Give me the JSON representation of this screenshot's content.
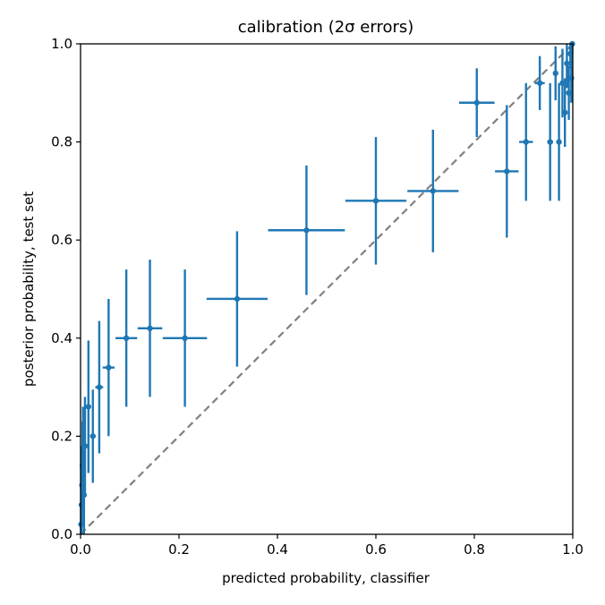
{
  "chart_data": {
    "type": "scatter",
    "title": "calibration (2σ errors)",
    "xlabel": "predicted probability, classifier",
    "ylabel": "posterior probability, test set",
    "xlim": [
      0.0,
      1.0
    ],
    "ylim": [
      0.0,
      1.0
    ],
    "xticks": [
      "0.0",
      "0.2",
      "0.4",
      "0.6",
      "0.8",
      "1.0"
    ],
    "yticks": [
      "0.0",
      "0.2",
      "0.4",
      "0.6",
      "0.8",
      "1.0"
    ],
    "grid": false,
    "reference_line": {
      "x": [
        0.0,
        1.0
      ],
      "y": [
        0.0,
        1.0
      ],
      "style": "dashed",
      "color": "#808080"
    },
    "series": [
      {
        "color": "#1f77b4",
        "points": [
          {
            "x": 0.001,
            "y": 0.02,
            "xerr": 0.001,
            "yerr": 0.04
          },
          {
            "x": 0.002,
            "y": 0.06,
            "xerr": 0.001,
            "yerr": 0.06
          },
          {
            "x": 0.003,
            "y": 0.1,
            "xerr": 0.002,
            "yerr": 0.08
          },
          {
            "x": 0.004,
            "y": 0.14,
            "xerr": 0.002,
            "yerr": 0.09
          },
          {
            "x": 0.005,
            "y": 0.17,
            "xerr": 0.002,
            "yerr": 0.09
          },
          {
            "x": 0.007,
            "y": 0.08,
            "xerr": 0.003,
            "yerr": 0.1
          },
          {
            "x": 0.009,
            "y": 0.18,
            "xerr": 0.003,
            "yerr": 0.1
          },
          {
            "x": 0.016,
            "y": 0.26,
            "xerr": 0.004,
            "yerr": 0.135
          },
          {
            "x": 0.025,
            "y": 0.2,
            "xerr": 0.006,
            "yerr": 0.095
          },
          {
            "x": 0.038,
            "y": 0.3,
            "xerr": 0.008,
            "yerr": 0.135
          },
          {
            "x": 0.057,
            "y": 0.34,
            "xerr": 0.012,
            "yerr": 0.14
          },
          {
            "x": 0.093,
            "y": 0.4,
            "xerr": 0.022,
            "yerr": 0.14
          },
          {
            "x": 0.141,
            "y": 0.42,
            "xerr": 0.025,
            "yerr": 0.14
          },
          {
            "x": 0.212,
            "y": 0.4,
            "xerr": 0.045,
            "yerr": 0.14
          },
          {
            "x": 0.318,
            "y": 0.48,
            "xerr": 0.062,
            "yerr": 0.138
          },
          {
            "x": 0.459,
            "y": 0.62,
            "xerr": 0.078,
            "yerr": 0.132
          },
          {
            "x": 0.6,
            "y": 0.68,
            "xerr": 0.062,
            "yerr": 0.13
          },
          {
            "x": 0.716,
            "y": 0.7,
            "xerr": 0.052,
            "yerr": 0.125
          },
          {
            "x": 0.805,
            "y": 0.88,
            "xerr": 0.036,
            "yerr": 0.07
          },
          {
            "x": 0.866,
            "y": 0.74,
            "xerr": 0.024,
            "yerr": 0.135
          },
          {
            "x": 0.905,
            "y": 0.8,
            "xerr": 0.014,
            "yerr": 0.12
          },
          {
            "x": 0.933,
            "y": 0.92,
            "xerr": 0.01,
            "yerr": 0.055
          },
          {
            "x": 0.954,
            "y": 0.8,
            "xerr": 0.006,
            "yerr": 0.12
          },
          {
            "x": 0.965,
            "y": 0.94,
            "xerr": 0.005,
            "yerr": 0.055
          },
          {
            "x": 0.972,
            "y": 0.8,
            "xerr": 0.004,
            "yerr": 0.12
          },
          {
            "x": 0.979,
            "y": 0.92,
            "xerr": 0.003,
            "yerr": 0.07
          },
          {
            "x": 0.984,
            "y": 0.86,
            "xerr": 0.002,
            "yerr": 0.07
          },
          {
            "x": 0.988,
            "y": 0.96,
            "xerr": 0.002,
            "yerr": 0.05
          },
          {
            "x": 0.992,
            "y": 0.9,
            "xerr": 0.002,
            "yerr": 0.055
          },
          {
            "x": 0.995,
            "y": 0.98,
            "xerr": 0.002,
            "yerr": 0.03
          },
          {
            "x": 0.997,
            "y": 0.93,
            "xerr": 0.001,
            "yerr": 0.05
          },
          {
            "x": 0.999,
            "y": 1.0,
            "xerr": 0.001,
            "yerr": 0.02
          }
        ]
      }
    ]
  }
}
